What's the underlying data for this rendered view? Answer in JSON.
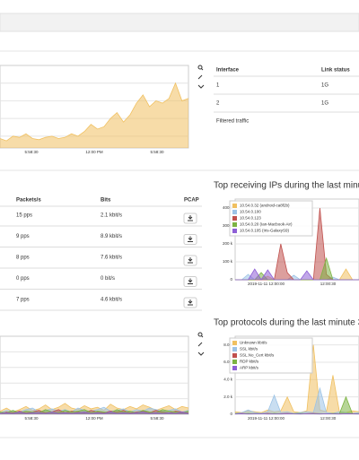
{
  "interfaces_table": {
    "headers": [
      "Interface",
      "Link status"
    ],
    "rows": [
      [
        "1",
        "1G"
      ],
      [
        "2",
        "1G"
      ]
    ],
    "link": "Filtered traffic"
  },
  "flows_table": {
    "headers": [
      "Packets/s",
      "Bits",
      "PCAP"
    ],
    "rows": [
      [
        "15 pps",
        "2.1 kbit/s"
      ],
      [
        "9 pps",
        "8.9 kbit/s"
      ],
      [
        "8 pps",
        "7.6 kbit/s"
      ],
      [
        "0 pps",
        "0 bit/s"
      ],
      [
        "7 pps",
        "4.6 kbit/s"
      ]
    ]
  },
  "charts": [
    {
      "type": "area",
      "x_labels": [
        "5:58:30",
        "12:00 PM",
        "5:58:30"
      ],
      "ylim": [
        0,
        70
      ],
      "yticks": [
        10,
        25,
        40,
        55
      ],
      "y_labels": false,
      "legend": false,
      "series": [
        {
          "color": "#f0c060",
          "values": [
            8,
            6,
            10,
            9,
            12,
            8,
            7,
            9,
            10,
            8,
            9,
            12,
            10,
            14,
            20,
            16,
            18,
            25,
            30,
            22,
            28,
            38,
            45,
            35,
            40,
            38,
            42,
            55,
            40,
            42
          ]
        }
      ]
    },
    {
      "type": "area",
      "title": "Top receiving IPs during the last minute",
      "x_labels": [
        "2019-11-11 12:00:00",
        "12:00:30"
      ],
      "ylim": [
        0,
        450000
      ],
      "yticks": [
        {
          "value": 0,
          "label": "0"
        },
        {
          "value": 100000,
          "label": "100 k"
        },
        {
          "value": 200000,
          "label": "200 k"
        },
        {
          "value": 300000,
          "label": "300 k"
        },
        {
          "value": 400000,
          "label": "400 k"
        }
      ],
      "y_labels": true,
      "legend": true,
      "series": [
        {
          "name": "10.54.0.32 (android-ca8f2b)",
          "color": "#f0c060",
          "values": [
            0,
            0,
            0,
            0,
            0,
            20000,
            0,
            0,
            0,
            0,
            0,
            0,
            0,
            0,
            0,
            0,
            0,
            60000,
            0,
            0
          ]
        },
        {
          "name": "10.54.0.100",
          "color": "#9cc3e6",
          "values": [
            0,
            0,
            30000,
            0,
            0,
            0,
            0,
            0,
            0,
            25000,
            0,
            0,
            0,
            0,
            0,
            15000,
            0,
            0,
            0,
            0
          ]
        },
        {
          "name": "10.54.0.123",
          "color": "#c0504d",
          "values": [
            0,
            0,
            0,
            0,
            0,
            0,
            0,
            200000,
            40000,
            0,
            0,
            0,
            0,
            400000,
            30000,
            0,
            0,
            0,
            0,
            0
          ]
        },
        {
          "name": "10.54.0.20 (Ian-Macbook-Air)",
          "color": "#7cb342",
          "values": [
            0,
            0,
            0,
            0,
            40000,
            0,
            0,
            0,
            0,
            0,
            0,
            0,
            0,
            0,
            120000,
            0,
            0,
            0,
            0,
            0
          ]
        },
        {
          "name": "10.54.0.105 (Iris-GalaxyS9)",
          "color": "#8e5fd6",
          "values": [
            0,
            0,
            0,
            60000,
            0,
            55000,
            0,
            0,
            0,
            0,
            0,
            50000,
            0,
            0,
            0,
            0,
            0,
            0,
            0,
            0
          ]
        }
      ]
    },
    {
      "type": "area",
      "x_labels": [
        "5:58:30",
        "12:00 PM",
        "5:58:30"
      ],
      "ylim": [
        0,
        100
      ],
      "yticks": [
        20,
        40,
        60,
        80
      ],
      "y_labels": false,
      "legend": false,
      "series": [
        {
          "color": "#f0c060",
          "values": [
            4,
            8,
            3,
            6,
            10,
            5,
            7,
            12,
            6,
            9,
            14,
            8,
            6,
            11,
            7,
            9,
            5,
            13,
            8,
            6,
            10,
            7,
            12,
            9,
            5,
            8,
            11,
            6,
            10,
            8
          ]
        },
        {
          "color": "#9cc3e6",
          "values": [
            2,
            5,
            4,
            3,
            6,
            8,
            3,
            5,
            7,
            4,
            6,
            3,
            8,
            5,
            4,
            6,
            9,
            4,
            5,
            7,
            3,
            6,
            4,
            8,
            6,
            4,
            5,
            7,
            3,
            5
          ]
        },
        {
          "color": "#c0504d",
          "values": [
            1,
            3,
            2,
            4,
            2,
            3,
            5,
            2,
            3,
            6,
            2,
            4,
            3,
            2,
            5,
            3,
            2,
            4,
            3,
            5,
            2,
            3,
            4,
            2,
            5,
            3,
            2,
            4,
            3,
            2
          ]
        },
        {
          "color": "#7cb342",
          "values": [
            3,
            2,
            5,
            2,
            4,
            3,
            2,
            6,
            3,
            2,
            5,
            3,
            4,
            6,
            2,
            4,
            3,
            2,
            6,
            3,
            4,
            2,
            5,
            3,
            2,
            6,
            4,
            3,
            2,
            4
          ]
        },
        {
          "color": "#8e5fd6",
          "values": [
            1,
            2,
            1,
            3,
            1,
            2,
            2,
            1,
            3,
            1,
            2,
            1,
            2,
            3,
            1,
            2,
            1,
            3,
            1,
            2,
            1,
            2,
            3,
            1,
            2,
            1,
            2,
            1,
            3,
            1
          ]
        }
      ]
    },
    {
      "type": "area",
      "title": "Top protocols during the last minute 3",
      "x_labels": [
        "2019-11-11 12:00:00",
        "12:00:30"
      ],
      "ylim": [
        0,
        9000
      ],
      "yticks": [
        {
          "value": 0,
          "label": "0"
        },
        {
          "value": 2000,
          "label": "2.0 k"
        },
        {
          "value": 4000,
          "label": "4.0 k"
        },
        {
          "value": 6000,
          "label": "6.0 k"
        },
        {
          "value": 8000,
          "label": "8.0 k"
        }
      ],
      "y_labels": true,
      "legend": true,
      "series": [
        {
          "name": "Unknown kbit/s",
          "color": "#f0c060",
          "values": [
            300,
            200,
            400,
            300,
            200,
            500,
            300,
            400,
            2000,
            300,
            200,
            400,
            8000,
            500,
            300,
            4500,
            300,
            200,
            400,
            300
          ]
        },
        {
          "name": "SSL kbit/s",
          "color": "#9cc3e6",
          "values": [
            100,
            200,
            500,
            200,
            100,
            300,
            2200,
            200,
            300,
            100,
            200,
            300,
            200,
            3000,
            200,
            100,
            300,
            200,
            100,
            200
          ]
        },
        {
          "name": "SSL.No_Cert kbit/s",
          "color": "#c0504d",
          "values": [
            50,
            100,
            50,
            80,
            60,
            100,
            50,
            80,
            100,
            60,
            50,
            80,
            100,
            60,
            50,
            80,
            60,
            50,
            80,
            60
          ]
        },
        {
          "name": "RDP kbit/s",
          "color": "#7cb342",
          "values": [
            100,
            50,
            100,
            60,
            80,
            50,
            100,
            60,
            50,
            80,
            100,
            50,
            60,
            80,
            50,
            100,
            60,
            2000,
            50,
            80
          ]
        },
        {
          "name": "ARP kbit/s",
          "color": "#8e5fd6",
          "values": [
            30,
            50,
            30,
            40,
            50,
            30,
            40,
            30,
            50,
            40,
            30,
            50,
            40,
            30,
            50,
            40,
            30,
            50,
            40,
            30
          ]
        }
      ]
    }
  ]
}
